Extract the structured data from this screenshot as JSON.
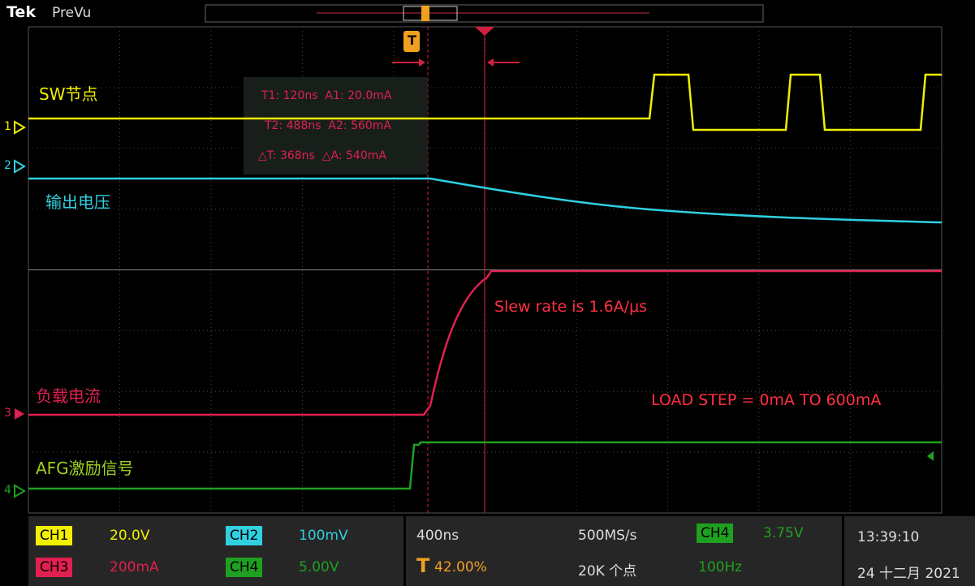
{
  "header": {
    "brand": "Tek",
    "mode": "PreVu"
  },
  "channel_markers": [
    "1",
    "2",
    "3",
    "4"
  ],
  "waveform_labels": [
    "SW节点",
    "输出电压",
    "负载电流",
    "AFG激励信号"
  ],
  "cursor_readout": [
    "T1: 120ns  A1: 20.0mA",
    "T2: 488ns  A2: 560mA",
    "△T: 368ns  △A: 540mA"
  ],
  "annotations": [
    "Slew rate is 1.6A/μs",
    "LOAD STEP = 0mA TO 600mA"
  ],
  "trigger_marker": "T",
  "status": {
    "channels": [
      {
        "name": "CH1",
        "scale": "20.0V"
      },
      {
        "name": "CH2",
        "scale": "100mV"
      },
      {
        "name": "CH3",
        "scale": "200mA"
      },
      {
        "name": "CH4",
        "scale": "5.00V"
      }
    ],
    "horizontal": {
      "scale": "400ns",
      "position": "42.00%",
      "rate": "500MS/s",
      "length": "20K 个点"
    },
    "trigger": {
      "source": "CH4",
      "level": "3.75V",
      "frequency": "100Hz"
    },
    "time": "13:39:10",
    "date": "24 十二月 2021"
  }
}
